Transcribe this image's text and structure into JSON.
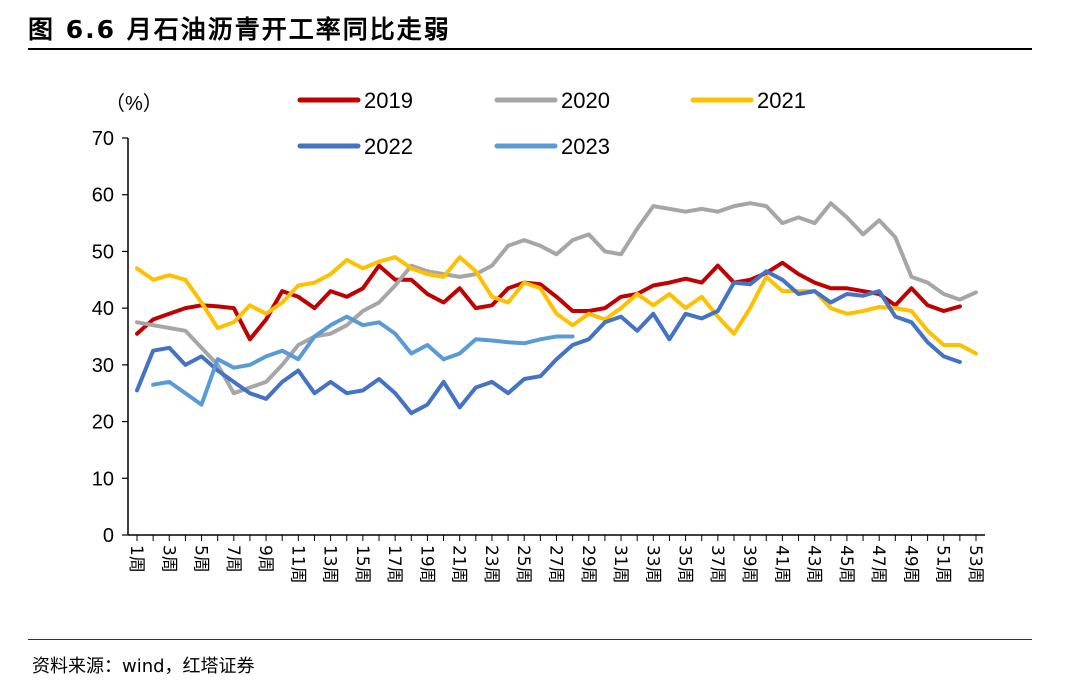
{
  "figure": {
    "title": "图 6.6 月石油沥青开工率同比走弱",
    "source": "资料来源：wind，红塔证券"
  },
  "chart_data": {
    "type": "line",
    "title": "",
    "xlabel": "",
    "ylabel": "（%）",
    "ylim": [
      0,
      70
    ],
    "yticks": [
      0,
      10,
      20,
      30,
      40,
      50,
      60,
      70
    ],
    "grid": false,
    "legend": "top",
    "x": [
      1,
      2,
      3,
      4,
      5,
      6,
      7,
      8,
      9,
      10,
      11,
      12,
      13,
      14,
      15,
      16,
      17,
      18,
      19,
      20,
      21,
      22,
      23,
      24,
      25,
      26,
      27,
      28,
      29,
      30,
      31,
      32,
      33,
      34,
      35,
      36,
      37,
      38,
      39,
      40,
      41,
      42,
      43,
      44,
      45,
      46,
      47,
      48,
      49,
      50,
      51,
      52,
      53
    ],
    "xtick_labels": [
      "1周",
      "3周",
      "5周",
      "7周",
      "9周",
      "11周",
      "13周",
      "15周",
      "17周",
      "19周",
      "21周",
      "23周",
      "25周",
      "27周",
      "29周",
      "31周",
      "33周",
      "35周",
      "37周",
      "39周",
      "41周",
      "43周",
      "45周",
      "47周",
      "49周",
      "51周",
      "53周"
    ],
    "series": [
      {
        "name": "2019",
        "color": "#c00000",
        "values": [
          35.5,
          38,
          39,
          40,
          40.5,
          40.3,
          40,
          34.5,
          38,
          43,
          42,
          40,
          43,
          42,
          43.5,
          47.5,
          45,
          45,
          42.5,
          41,
          43.5,
          40,
          40.5,
          43.5,
          44.5,
          44.2,
          42,
          39.5,
          39.5,
          40,
          42,
          42.5,
          44,
          44.5,
          45.2,
          44.5,
          47.5,
          44.5,
          45,
          46.2,
          48,
          46,
          44.5,
          43.5,
          43.5,
          43,
          42.5,
          40.5,
          43.5,
          40.5,
          39.5,
          40.3,
          null
        ]
      },
      {
        "name": "2020",
        "color": "#a6a6a6",
        "values": [
          37.5,
          37,
          36.5,
          36,
          33,
          30,
          25,
          26,
          27,
          30,
          33.5,
          35,
          35.5,
          37,
          39.5,
          41,
          44,
          47.5,
          46.5,
          46,
          45.5,
          46,
          47.5,
          51,
          52,
          51,
          49.5,
          52,
          53,
          50,
          49.5,
          54,
          58,
          57.5,
          57,
          57.5,
          57,
          58,
          58.5,
          58,
          55,
          56,
          55,
          58.5,
          56,
          53,
          55.5,
          52.5,
          45.5,
          44.5,
          42.5,
          41.5,
          42.8
        ]
      },
      {
        "name": "2021",
        "color": "#ffc000",
        "values": [
          47,
          45,
          45.8,
          45,
          41,
          36.5,
          37.5,
          40.5,
          39,
          41,
          44,
          44.5,
          46,
          48.5,
          47,
          48.2,
          49,
          47,
          46,
          45.5,
          49,
          46.5,
          42,
          41,
          44.5,
          43.5,
          39,
          37,
          39,
          38,
          40,
          42.5,
          40.5,
          42.5,
          40,
          42,
          38.5,
          35.5,
          40,
          45.5,
          43,
          43,
          43,
          40,
          39,
          39.5,
          40.2,
          40,
          39.5,
          36,
          33.5,
          33.5,
          32
        ]
      },
      {
        "name": "2022",
        "color": "#4472c4",
        "values": [
          25.5,
          32.5,
          33,
          30,
          31.5,
          29,
          27,
          25,
          24,
          27,
          29,
          25,
          27,
          25,
          25.5,
          27.5,
          25,
          21.5,
          23,
          27,
          22.5,
          26,
          27,
          25,
          27.5,
          28,
          31,
          33.5,
          34.5,
          37.5,
          38.5,
          36,
          39,
          34.5,
          39,
          38.2,
          39.5,
          44.5,
          44.2,
          46.5,
          45,
          42.5,
          43,
          41,
          42.5,
          42.2,
          43,
          38.5,
          37.5,
          34,
          31.5,
          30.5,
          null
        ]
      },
      {
        "name": "2023",
        "color": "#5b9bd5",
        "values": [
          null,
          26.5,
          27,
          25,
          23,
          31,
          29.5,
          30,
          31.5,
          32.5,
          31,
          35,
          37,
          38.5,
          37,
          37.5,
          35.5,
          32,
          33.5,
          31,
          32,
          34.5,
          34.3,
          34,
          33.8,
          34.5,
          35,
          35,
          null,
          null,
          null,
          null,
          null,
          null,
          null,
          null,
          null,
          null,
          null,
          null,
          null,
          null,
          null,
          null,
          null,
          null,
          null,
          null,
          null,
          null,
          null,
          null,
          null
        ]
      }
    ]
  }
}
